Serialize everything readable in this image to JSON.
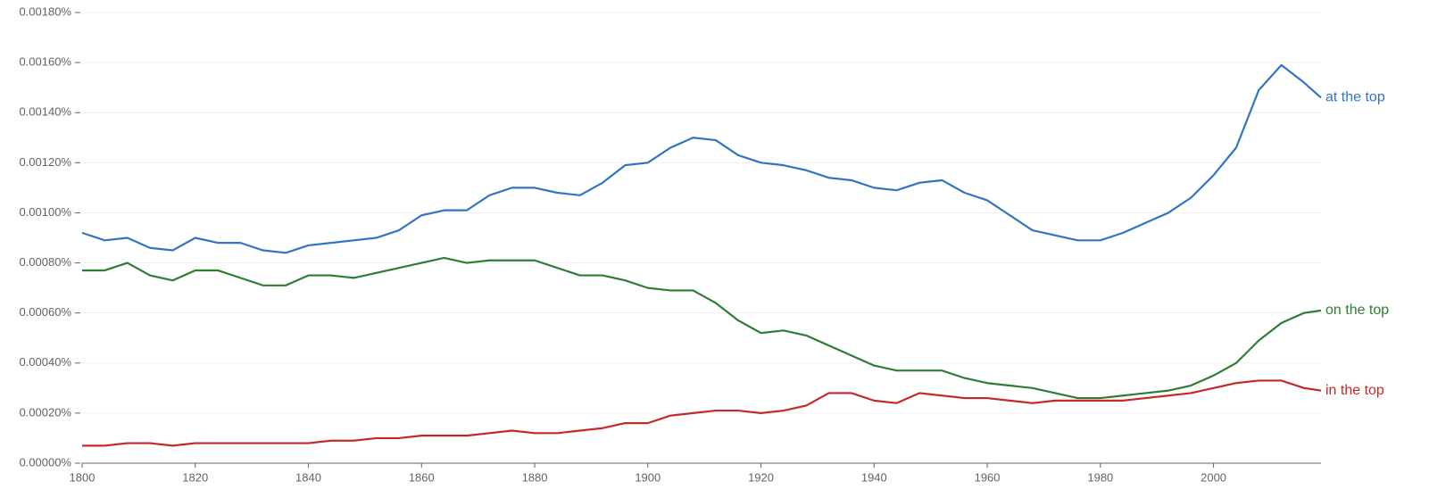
{
  "chart_data": {
    "type": "line",
    "x": [
      1800,
      1804,
      1808,
      1812,
      1816,
      1820,
      1824,
      1828,
      1832,
      1836,
      1840,
      1844,
      1848,
      1852,
      1856,
      1860,
      1864,
      1868,
      1872,
      1876,
      1880,
      1884,
      1888,
      1892,
      1896,
      1900,
      1904,
      1908,
      1912,
      1916,
      1920,
      1924,
      1928,
      1932,
      1936,
      1940,
      1944,
      1948,
      1952,
      1956,
      1960,
      1964,
      1968,
      1972,
      1976,
      1980,
      1984,
      1988,
      1992,
      1996,
      2000,
      2004,
      2008,
      2012,
      2016,
      2019
    ],
    "series": [
      {
        "name": "at the top",
        "color": "#3274c4",
        "values": [
          0.00092,
          0.00089,
          0.0009,
          0.00086,
          0.00085,
          0.0009,
          0.00088,
          0.00088,
          0.00085,
          0.00084,
          0.00087,
          0.00088,
          0.00089,
          0.0009,
          0.00093,
          0.00099,
          0.00101,
          0.00101,
          0.00107,
          0.0011,
          0.0011,
          0.00108,
          0.00107,
          0.00112,
          0.00119,
          0.0012,
          0.00126,
          0.0013,
          0.00129,
          0.00123,
          0.0012,
          0.00119,
          0.00117,
          0.00114,
          0.00113,
          0.0011,
          0.00109,
          0.00112,
          0.00113,
          0.00108,
          0.00105,
          0.00099,
          0.00093,
          0.00091,
          0.00089,
          0.00089,
          0.00092,
          0.00096,
          0.001,
          0.00106,
          0.00115,
          0.00126,
          0.00149,
          0.00159,
          0.00152,
          0.00146
        ]
      },
      {
        "name": "on the top",
        "color": "#2e7d32",
        "values": [
          0.00077,
          0.00077,
          0.0008,
          0.00075,
          0.00073,
          0.00077,
          0.00077,
          0.00074,
          0.00071,
          0.00071,
          0.00075,
          0.00075,
          0.00074,
          0.00076,
          0.00078,
          0.0008,
          0.00082,
          0.0008,
          0.00081,
          0.00081,
          0.00081,
          0.00078,
          0.00075,
          0.00075,
          0.00073,
          0.0007,
          0.00069,
          0.00069,
          0.00064,
          0.00057,
          0.00052,
          0.00053,
          0.00051,
          0.00047,
          0.00043,
          0.00039,
          0.00037,
          0.00037,
          0.00037,
          0.00034,
          0.00032,
          0.00031,
          0.0003,
          0.00028,
          0.00026,
          0.00026,
          0.00027,
          0.00028,
          0.00029,
          0.00031,
          0.00035,
          0.0004,
          0.00049,
          0.00056,
          0.0006,
          0.00061
        ]
      },
      {
        "name": "in the top",
        "color": "#c62828",
        "values": [
          7e-05,
          7e-05,
          8e-05,
          8e-05,
          7e-05,
          8e-05,
          8e-05,
          8e-05,
          8e-05,
          8e-05,
          8e-05,
          9e-05,
          9e-05,
          0.0001,
          0.0001,
          0.00011,
          0.00011,
          0.00011,
          0.00012,
          0.00013,
          0.00012,
          0.00012,
          0.00013,
          0.00014,
          0.00016,
          0.00016,
          0.00019,
          0.0002,
          0.00021,
          0.00021,
          0.0002,
          0.00021,
          0.00023,
          0.00028,
          0.00028,
          0.00025,
          0.00024,
          0.00028,
          0.00027,
          0.00026,
          0.00026,
          0.00025,
          0.00024,
          0.00025,
          0.00025,
          0.00025,
          0.00025,
          0.00026,
          0.00027,
          0.00028,
          0.0003,
          0.00032,
          0.00033,
          0.00033,
          0.0003,
          0.00029
        ]
      }
    ],
    "xlim": [
      1800,
      2019
    ],
    "xticks": [
      1800,
      1820,
      1840,
      1860,
      1880,
      1900,
      1920,
      1940,
      1960,
      1980,
      2000
    ],
    "ylim": [
      0,
      0.0018
    ],
    "yticks": [
      {
        "value": 0,
        "label": "0.00000%"
      },
      {
        "value": 0.0002,
        "label": "0.00020%"
      },
      {
        "value": 0.0004,
        "label": "0.00040%"
      },
      {
        "value": 0.0006,
        "label": "0.00060%"
      },
      {
        "value": 0.0008,
        "label": "0.00080%"
      },
      {
        "value": 0.001,
        "label": "0.00100%"
      },
      {
        "value": 0.0012,
        "label": "0.00120%"
      },
      {
        "value": 0.0014,
        "label": "0.00140%"
      },
      {
        "value": 0.0016,
        "label": "0.00160%"
      },
      {
        "value": 0.0018,
        "label": "0.00180%"
      }
    ],
    "grid": true
  }
}
